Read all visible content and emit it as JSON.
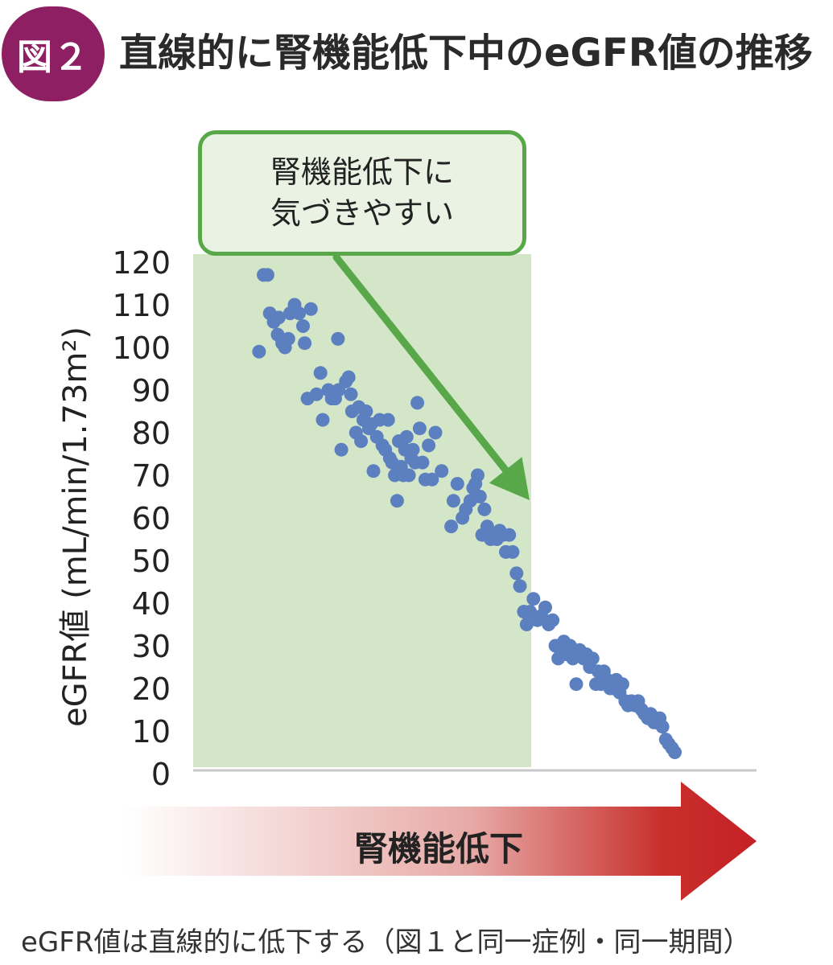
{
  "header": {
    "badge": "図２",
    "title": "直線的に腎機能低下中のeGFR値の推移"
  },
  "callout": {
    "line1": "腎機能低下に",
    "line2": "気づきやすい"
  },
  "decline_arrow": {
    "label": "腎機能低下"
  },
  "caption": "eGFR値は直線的に低下する（図１と同一症例・同一期間）",
  "colors": {
    "badge": "#8e1f63",
    "points": "#5b7fbf",
    "highlight_fill": "#d4e6c8",
    "callout_border": "#58a84a",
    "green_arrow": "#58a84a",
    "red_arrow": "#c52026"
  },
  "chart_data": {
    "type": "scatter",
    "title": "",
    "xlabel": "",
    "ylabel": "eGFR値 (mL/min/1.73m²)",
    "ylim": [
      0,
      120
    ],
    "yticks": [
      0,
      10,
      20,
      30,
      40,
      50,
      60,
      70,
      80,
      90,
      100,
      110,
      120
    ],
    "xlim": [
      0,
      100
    ],
    "grid": false,
    "legend": "none",
    "highlight_region": {
      "x_from": 0,
      "x_to": 60,
      "y_from": 0,
      "y_to": 120
    },
    "points": [
      {
        "x": 12.5,
        "y": 117
      },
      {
        "x": 13.2,
        "y": 117
      },
      {
        "x": 11.7,
        "y": 99
      },
      {
        "x": 13.6,
        "y": 108
      },
      {
        "x": 14.3,
        "y": 106
      },
      {
        "x": 15.0,
        "y": 103
      },
      {
        "x": 15.2,
        "y": 107
      },
      {
        "x": 15.8,
        "y": 101
      },
      {
        "x": 16.3,
        "y": 100
      },
      {
        "x": 16.9,
        "y": 102
      },
      {
        "x": 17.2,
        "y": 108
      },
      {
        "x": 18.0,
        "y": 110
      },
      {
        "x": 18.8,
        "y": 108
      },
      {
        "x": 19.5,
        "y": 105
      },
      {
        "x": 19.8,
        "y": 101
      },
      {
        "x": 20.9,
        "y": 109
      },
      {
        "x": 25.7,
        "y": 102
      },
      {
        "x": 20.3,
        "y": 88
      },
      {
        "x": 21.9,
        "y": 89
      },
      {
        "x": 22.6,
        "y": 94
      },
      {
        "x": 23.0,
        "y": 83
      },
      {
        "x": 24.0,
        "y": 90
      },
      {
        "x": 24.6,
        "y": 88
      },
      {
        "x": 25.2,
        "y": 88
      },
      {
        "x": 25.8,
        "y": 90
      },
      {
        "x": 26.3,
        "y": 76
      },
      {
        "x": 27.1,
        "y": 92
      },
      {
        "x": 27.6,
        "y": 93
      },
      {
        "x": 28.0,
        "y": 89
      },
      {
        "x": 28.2,
        "y": 85
      },
      {
        "x": 28.9,
        "y": 80
      },
      {
        "x": 29.4,
        "y": 86
      },
      {
        "x": 29.8,
        "y": 78
      },
      {
        "x": 30.2,
        "y": 83
      },
      {
        "x": 30.7,
        "y": 85
      },
      {
        "x": 31.2,
        "y": 81
      },
      {
        "x": 31.6,
        "y": 82
      },
      {
        "x": 32.0,
        "y": 71
      },
      {
        "x": 32.6,
        "y": 79
      },
      {
        "x": 33.1,
        "y": 83
      },
      {
        "x": 33.6,
        "y": 77
      },
      {
        "x": 34.1,
        "y": 76
      },
      {
        "x": 34.6,
        "y": 83
      },
      {
        "x": 34.9,
        "y": 74
      },
      {
        "x": 35.3,
        "y": 73
      },
      {
        "x": 35.8,
        "y": 70
      },
      {
        "x": 36.2,
        "y": 64
      },
      {
        "x": 36.5,
        "y": 78
      },
      {
        "x": 36.9,
        "y": 72
      },
      {
        "x": 37.3,
        "y": 70
      },
      {
        "x": 37.6,
        "y": 76
      },
      {
        "x": 37.9,
        "y": 79
      },
      {
        "x": 38.3,
        "y": 70
      },
      {
        "x": 38.7,
        "y": 74
      },
      {
        "x": 39.0,
        "y": 76
      },
      {
        "x": 39.4,
        "y": 73
      },
      {
        "x": 39.8,
        "y": 87
      },
      {
        "x": 40.2,
        "y": 81
      },
      {
        "x": 40.7,
        "y": 73
      },
      {
        "x": 41.2,
        "y": 69
      },
      {
        "x": 41.8,
        "y": 77
      },
      {
        "x": 42.4,
        "y": 69
      },
      {
        "x": 43.0,
        "y": 80
      },
      {
        "x": 44.1,
        "y": 71
      },
      {
        "x": 45.8,
        "y": 58
      },
      {
        "x": 46.2,
        "y": 64
      },
      {
        "x": 46.9,
        "y": 68
      },
      {
        "x": 47.8,
        "y": 60
      },
      {
        "x": 48.4,
        "y": 62
      },
      {
        "x": 49.2,
        "y": 64
      },
      {
        "x": 49.7,
        "y": 67
      },
      {
        "x": 50.1,
        "y": 68
      },
      {
        "x": 50.5,
        "y": 70
      },
      {
        "x": 50.9,
        "y": 65
      },
      {
        "x": 51.3,
        "y": 56
      },
      {
        "x": 51.7,
        "y": 62
      },
      {
        "x": 52.2,
        "y": 58
      },
      {
        "x": 52.8,
        "y": 55
      },
      {
        "x": 53.3,
        "y": 56
      },
      {
        "x": 53.9,
        "y": 55
      },
      {
        "x": 54.4,
        "y": 57
      },
      {
        "x": 55.0,
        "y": 56
      },
      {
        "x": 55.5,
        "y": 52
      },
      {
        "x": 56.1,
        "y": 56
      },
      {
        "x": 56.7,
        "y": 52
      },
      {
        "x": 57.4,
        "y": 47
      },
      {
        "x": 58.0,
        "y": 44
      },
      {
        "x": 58.7,
        "y": 38
      },
      {
        "x": 59.2,
        "y": 35
      },
      {
        "x": 59.8,
        "y": 38
      },
      {
        "x": 60.4,
        "y": 41
      },
      {
        "x": 61.1,
        "y": 36
      },
      {
        "x": 61.8,
        "y": 37
      },
      {
        "x": 62.5,
        "y": 39
      },
      {
        "x": 63.1,
        "y": 35
      },
      {
        "x": 63.8,
        "y": 36
      },
      {
        "x": 64.3,
        "y": 30
      },
      {
        "x": 64.8,
        "y": 27
      },
      {
        "x": 65.2,
        "y": 29
      },
      {
        "x": 65.8,
        "y": 31
      },
      {
        "x": 66.3,
        "y": 28
      },
      {
        "x": 66.9,
        "y": 30
      },
      {
        "x": 67.4,
        "y": 27
      },
      {
        "x": 68.0,
        "y": 21
      },
      {
        "x": 68.6,
        "y": 29
      },
      {
        "x": 69.3,
        "y": 27
      },
      {
        "x": 69.8,
        "y": 28
      },
      {
        "x": 70.4,
        "y": 25
      },
      {
        "x": 70.9,
        "y": 27
      },
      {
        "x": 71.5,
        "y": 21
      },
      {
        "x": 71.9,
        "y": 24
      },
      {
        "x": 72.4,
        "y": 21
      },
      {
        "x": 72.9,
        "y": 24
      },
      {
        "x": 73.5,
        "y": 22
      },
      {
        "x": 74.0,
        "y": 20
      },
      {
        "x": 74.6,
        "y": 20
      },
      {
        "x": 75.1,
        "y": 22
      },
      {
        "x": 75.7,
        "y": 19
      },
      {
        "x": 76.2,
        "y": 21
      },
      {
        "x": 76.7,
        "y": 17
      },
      {
        "x": 77.2,
        "y": 16
      },
      {
        "x": 77.8,
        "y": 17
      },
      {
        "x": 78.4,
        "y": 16
      },
      {
        "x": 79.0,
        "y": 17
      },
      {
        "x": 79.6,
        "y": 15
      },
      {
        "x": 80.1,
        "y": 14
      },
      {
        "x": 80.7,
        "y": 13
      },
      {
        "x": 81.2,
        "y": 14
      },
      {
        "x": 81.8,
        "y": 12
      },
      {
        "x": 82.3,
        "y": 12
      },
      {
        "x": 82.8,
        "y": 13
      },
      {
        "x": 83.3,
        "y": 11
      },
      {
        "x": 83.9,
        "y": 8
      },
      {
        "x": 84.4,
        "y": 7
      },
      {
        "x": 85.0,
        "y": 6
      },
      {
        "x": 85.5,
        "y": 5
      }
    ]
  }
}
